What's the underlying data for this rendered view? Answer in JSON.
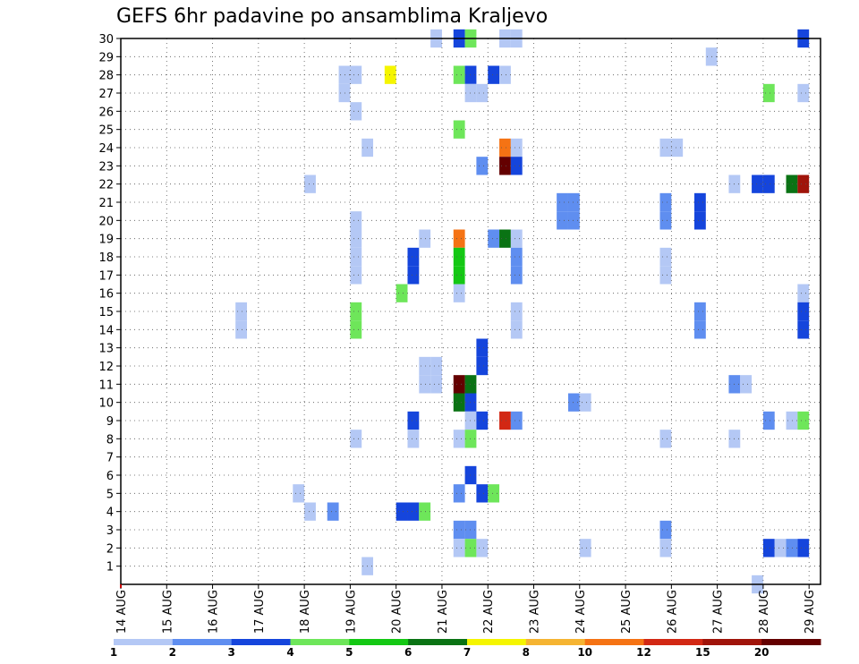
{
  "chart_data": {
    "type": "heatmap",
    "title": "GEFS 6hr padavine po ansamblima Kraljevo",
    "x_tick_labels": [
      "14 AUG",
      "15 AUG",
      "16 AUG",
      "17 AUG",
      "18 AUG",
      "19 AUG",
      "20 AUG",
      "21 AUG",
      "22 AUG",
      "23 AUG",
      "24 AUG",
      "25 AUG",
      "26 AUG",
      "27 AUG",
      "28 AUG",
      "29 AUG"
    ],
    "xlim": [
      "14 AUG 00h",
      "29 AUG 06h"
    ],
    "x_step_hours": 6,
    "y_tick_labels": [
      "1",
      "2",
      "3",
      "4",
      "5",
      "6",
      "7",
      "8",
      "9",
      "10",
      "11",
      "12",
      "13",
      "14",
      "15",
      "16",
      "17",
      "18",
      "19",
      "20",
      "21",
      "22",
      "23",
      "24",
      "25",
      "26",
      "27",
      "28",
      "29",
      "30"
    ],
    "ylim": [
      0,
      30
    ],
    "grid": true,
    "colorbar": {
      "placement": "bottom",
      "labels": [
        "1",
        "2",
        "3",
        "4",
        "5",
        "6",
        "7",
        "8",
        "10",
        "12",
        "15",
        "20"
      ],
      "colors": [
        "#b4c8f5",
        "#5f8ef0",
        "#1545dc",
        "#6ee65a",
        "#14c814",
        "#0a7314",
        "#f5f500",
        "#f5b432",
        "#f57314",
        "#d22814",
        "#a0140a",
        "#640000"
      ]
    },
    "cells_note": "each cell = [start hours since 14 AUG 00h, ensemble member, color class 1-12]",
    "cells": [
      [
        162,
        30,
        1
      ],
      [
        174,
        30,
        3
      ],
      [
        180,
        30,
        4
      ],
      [
        198,
        30,
        1
      ],
      [
        204,
        30,
        1
      ],
      [
        354,
        30,
        3
      ],
      [
        306,
        29,
        1
      ],
      [
        114,
        28,
        1
      ],
      [
        120,
        28,
        1
      ],
      [
        138,
        28,
        7
      ],
      [
        174,
        28,
        4
      ],
      [
        180,
        28,
        3
      ],
      [
        192,
        28,
        3
      ],
      [
        198,
        28,
        1
      ],
      [
        114,
        27,
        1
      ],
      [
        180,
        27,
        1
      ],
      [
        186,
        27,
        1
      ],
      [
        336,
        27,
        4
      ],
      [
        354,
        27,
        1
      ],
      [
        120,
        26,
        1
      ],
      [
        174,
        25,
        4
      ],
      [
        126,
        24,
        1
      ],
      [
        198,
        24,
        9
      ],
      [
        204,
        24,
        1
      ],
      [
        282,
        24,
        1
      ],
      [
        288,
        24,
        1
      ],
      [
        186,
        23,
        2
      ],
      [
        198,
        23,
        12
      ],
      [
        204,
        23,
        3
      ],
      [
        96,
        22,
        1
      ],
      [
        318,
        22,
        1
      ],
      [
        330,
        22,
        3
      ],
      [
        336,
        22,
        3
      ],
      [
        348,
        22,
        6
      ],
      [
        354,
        22,
        11
      ],
      [
        228,
        21,
        2
      ],
      [
        234,
        21,
        2
      ],
      [
        282,
        21,
        2
      ],
      [
        300,
        21,
        3
      ],
      [
        120,
        20,
        1
      ],
      [
        228,
        20,
        2
      ],
      [
        234,
        20,
        2
      ],
      [
        282,
        20,
        2
      ],
      [
        300,
        20,
        3
      ],
      [
        120,
        19,
        1
      ],
      [
        156,
        19,
        1
      ],
      [
        174,
        19,
        9
      ],
      [
        192,
        19,
        2
      ],
      [
        198,
        19,
        6
      ],
      [
        204,
        19,
        1
      ],
      [
        120,
        18,
        1
      ],
      [
        150,
        18,
        3
      ],
      [
        174,
        18,
        5
      ],
      [
        204,
        18,
        2
      ],
      [
        282,
        18,
        1
      ],
      [
        120,
        17,
        1
      ],
      [
        150,
        17,
        3
      ],
      [
        174,
        17,
        5
      ],
      [
        204,
        17,
        2
      ],
      [
        282,
        17,
        1
      ],
      [
        144,
        16,
        4
      ],
      [
        174,
        16,
        1
      ],
      [
        354,
        16,
        1
      ],
      [
        60,
        15,
        1
      ],
      [
        120,
        15,
        4
      ],
      [
        204,
        15,
        1
      ],
      [
        300,
        15,
        2
      ],
      [
        354,
        15,
        3
      ],
      [
        60,
        14,
        1
      ],
      [
        120,
        14,
        4
      ],
      [
        204,
        14,
        1
      ],
      [
        300,
        14,
        2
      ],
      [
        354,
        14,
        3
      ],
      [
        186,
        13,
        3
      ],
      [
        156,
        12,
        1
      ],
      [
        162,
        12,
        1
      ],
      [
        186,
        12,
        3
      ],
      [
        156,
        11,
        1
      ],
      [
        162,
        11,
        1
      ],
      [
        174,
        11,
        12
      ],
      [
        180,
        11,
        6
      ],
      [
        318,
        11,
        2
      ],
      [
        324,
        11,
        1
      ],
      [
        174,
        10,
        6
      ],
      [
        180,
        10,
        3
      ],
      [
        234,
        10,
        2
      ],
      [
        240,
        10,
        1
      ],
      [
        150,
        9,
        3
      ],
      [
        180,
        9,
        1
      ],
      [
        186,
        9,
        3
      ],
      [
        198,
        9,
        10
      ],
      [
        204,
        9,
        2
      ],
      [
        336,
        9,
        2
      ],
      [
        348,
        9,
        1
      ],
      [
        354,
        9,
        4
      ],
      [
        120,
        8,
        1
      ],
      [
        150,
        8,
        1
      ],
      [
        174,
        8,
        1
      ],
      [
        180,
        8,
        4
      ],
      [
        282,
        8,
        1
      ],
      [
        318,
        8,
        1
      ],
      [
        180,
        6,
        3
      ],
      [
        90,
        5,
        1
      ],
      [
        174,
        5,
        2
      ],
      [
        186,
        5,
        3
      ],
      [
        192,
        5,
        4
      ],
      [
        96,
        4,
        1
      ],
      [
        108,
        4,
        2
      ],
      [
        150,
        4,
        3
      ],
      [
        144,
        4,
        3
      ],
      [
        156,
        4,
        4
      ],
      [
        174,
        3,
        2
      ],
      [
        180,
        3,
        2
      ],
      [
        282,
        3,
        2
      ],
      [
        174,
        2,
        1
      ],
      [
        180,
        2,
        4
      ],
      [
        186,
        2,
        1
      ],
      [
        240,
        2,
        1
      ],
      [
        282,
        2,
        1
      ],
      [
        336,
        2,
        3
      ],
      [
        342,
        2,
        1
      ],
      [
        348,
        2,
        2
      ],
      [
        354,
        2,
        3
      ],
      [
        126,
        1,
        1
      ],
      [
        330,
        0,
        1
      ]
    ]
  }
}
